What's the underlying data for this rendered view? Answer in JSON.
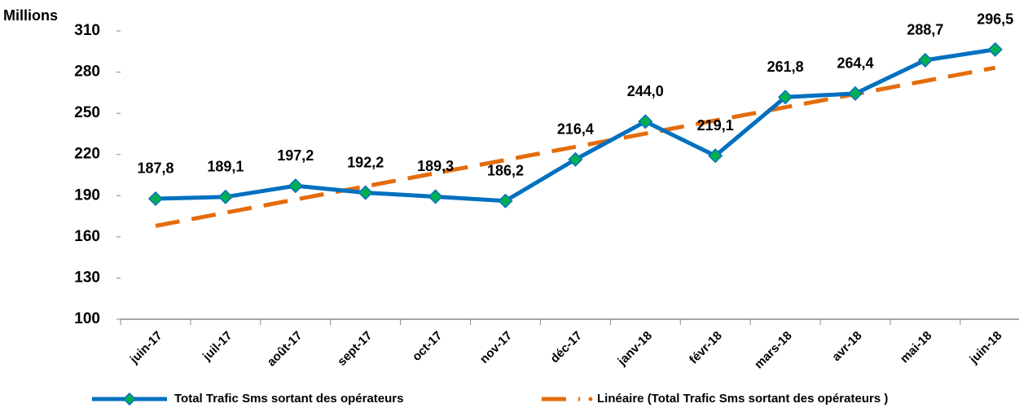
{
  "chart_data": {
    "type": "line",
    "ylabel": "Millions",
    "categories": [
      "juin-17",
      "juil-17",
      "août-17",
      "sept-17",
      "oct-17",
      "nov-17",
      "déc-17",
      "janv-18",
      "févr-18",
      "mars-18",
      "avr-18",
      "mai-18",
      "juin-18"
    ],
    "series": [
      {
        "name": "Total Trafic Sms sortant des opérateurs",
        "color": "#0070c0",
        "marker_color": "#00b050",
        "values": [
          187.8,
          189.1,
          197.2,
          192.2,
          189.3,
          186.2,
          216.4,
          244.0,
          219.1,
          261.8,
          264.4,
          288.7,
          296.5
        ],
        "value_labels": [
          "187,8",
          "189,1",
          "197,2",
          "192,2",
          "189,3",
          "186,2",
          "216,4",
          "244,0",
          "219,1",
          "261,8",
          "264,4",
          "288,7",
          "296,5"
        ]
      },
      {
        "name": "Linéaire (Total Trafic Sms sortant des opérateurs )",
        "color": "#e46c0a",
        "dashed": true,
        "values": [
          168,
          177.6,
          187.2,
          196.8,
          206.4,
          216,
          225.6,
          235.2,
          244.8,
          254.4,
          264,
          273.6,
          283.2
        ]
      }
    ],
    "ylim": [
      100,
      310
    ],
    "yticks": [
      100,
      130,
      160,
      190,
      220,
      250,
      280,
      310
    ]
  }
}
